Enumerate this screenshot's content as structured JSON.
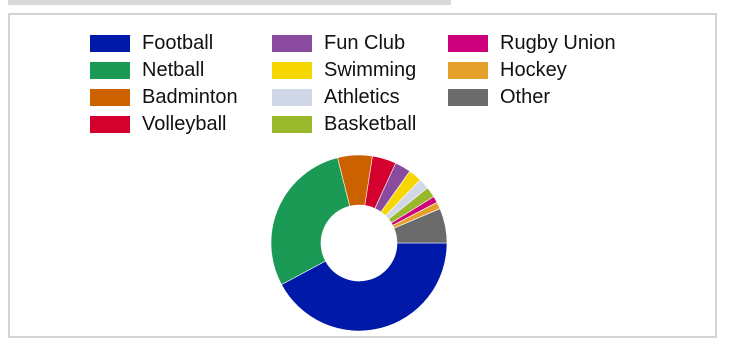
{
  "chart_data": {
    "type": "pie",
    "variant": "donut",
    "title": "",
    "legend_placement": "top",
    "legend_columns": 3,
    "categories": [
      "Football",
      "Netball",
      "Badminton",
      "Volleyball",
      "Fun Club",
      "Swimming",
      "Athletics",
      "Basketball",
      "Rugby Union",
      "Hockey",
      "Other"
    ],
    "values": [
      43.0,
      29.5,
      6.5,
      4.5,
      3.0,
      2.5,
      2.0,
      2.0,
      1.2,
      1.3,
      6.5
    ],
    "colors": [
      "#0019a8",
      "#1a9a55",
      "#cc6100",
      "#d4002d",
      "#8a4b9e",
      "#f7d700",
      "#d0d8e8",
      "#99b82c",
      "#cc007a",
      "#e5a02c",
      "#6b6b6b"
    ]
  }
}
